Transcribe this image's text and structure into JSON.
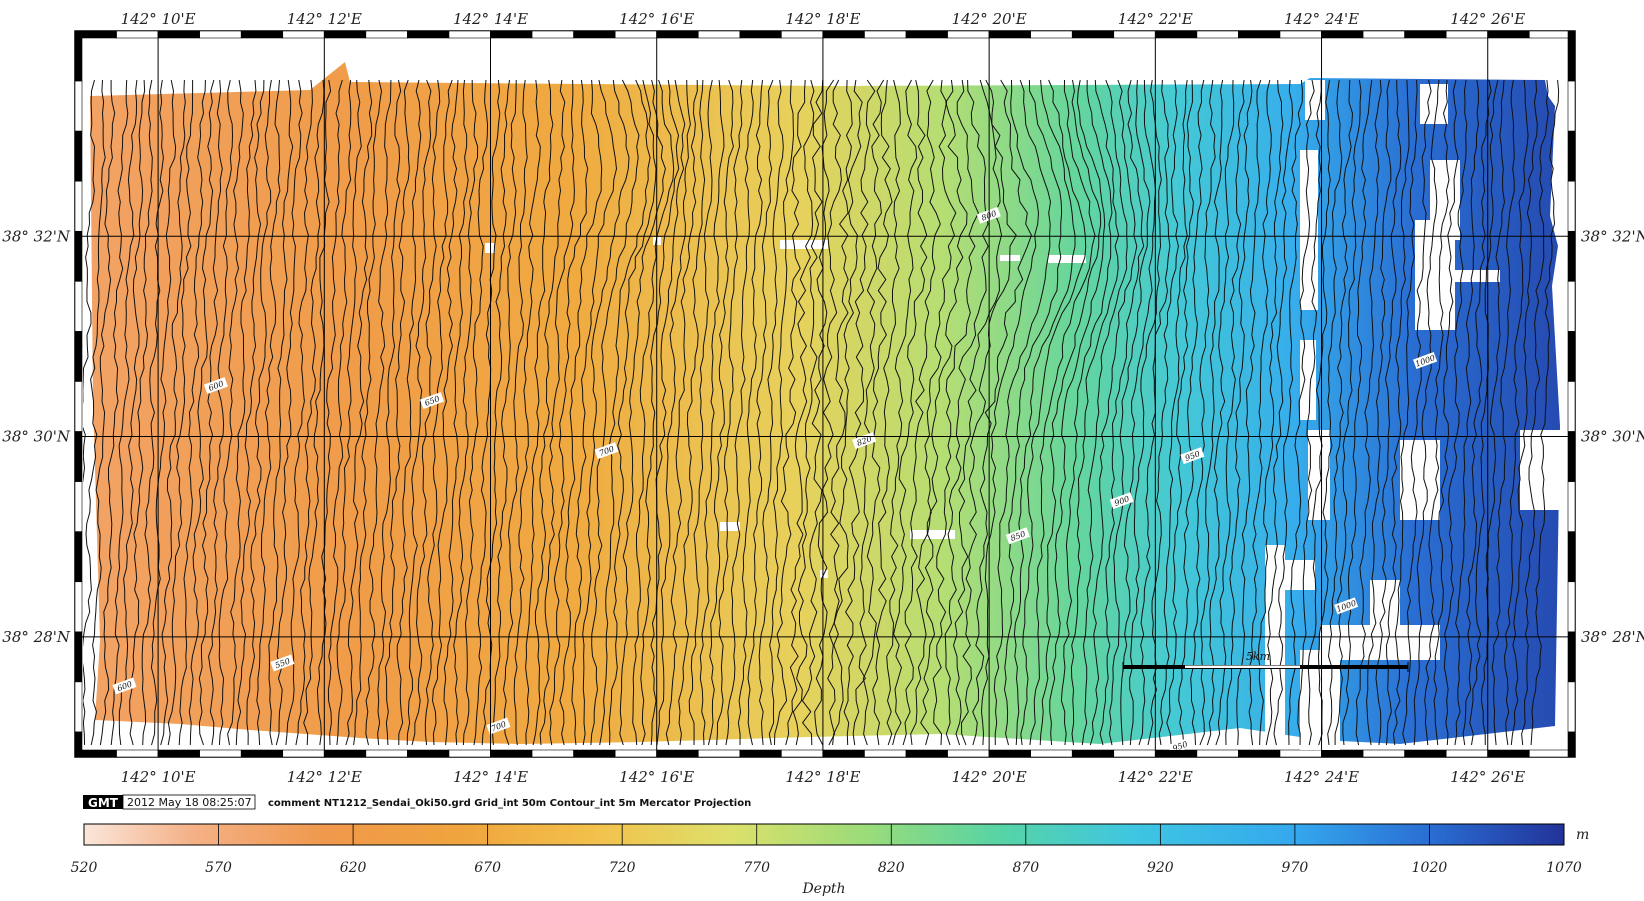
{
  "map": {
    "lon_labels": [
      "142° 10'E",
      "142° 12'E",
      "142° 14'E",
      "142° 16'E",
      "142° 18'E",
      "142° 20'E",
      "142° 22'E",
      "142° 24'E",
      "142° 26'E"
    ],
    "lat_labels": [
      "38° 32'N",
      "38° 30'N",
      "38° 28'N"
    ],
    "contour_labels": [
      {
        "text": "600",
        "lon_min": 10.7,
        "lat_min": 30.5
      },
      {
        "text": "650",
        "lon_min": 13.3,
        "lat_min": 30.35
      },
      {
        "text": "700",
        "lon_min": 15.4,
        "lat_min": 29.85
      },
      {
        "text": "800",
        "lon_min": 20.0,
        "lat_min": 32.2
      },
      {
        "text": "820",
        "lon_min": 18.5,
        "lat_min": 29.95
      },
      {
        "text": "850",
        "lon_min": 20.35,
        "lat_min": 29.0
      },
      {
        "text": "900",
        "lon_min": 21.6,
        "lat_min": 29.35
      },
      {
        "text": "950",
        "lon_min": 22.45,
        "lat_min": 29.8
      },
      {
        "text": "1000",
        "lon_min": 25.25,
        "lat_min": 30.75
      },
      {
        "text": "1000",
        "lon_min": 24.3,
        "lat_min": 28.3
      },
      {
        "text": "950",
        "lon_min": 22.3,
        "lat_min": 26.9
      },
      {
        "text": "600",
        "lon_min": 9.6,
        "lat_min": 27.5
      },
      {
        "text": "550",
        "lon_min": 11.5,
        "lat_min": 27.73
      },
      {
        "text": "700",
        "lon_min": 14.1,
        "lat_min": 27.1
      }
    ],
    "scale_bar_label": "5km"
  },
  "footer": {
    "gmt_logo": "GMT",
    "timestamp": "2012 May 18 08:25:07",
    "comment": "comment NT1212_Sendai_Oki50.grd Grid_int 50m Contour_int 5m  Mercator Projection"
  },
  "colorbar": {
    "ticks": [
      "520",
      "570",
      "620",
      "670",
      "720",
      "770",
      "820",
      "870",
      "920",
      "970",
      "1020",
      "1070"
    ],
    "unit": "m",
    "label": "Depth",
    "range": [
      520,
      1070
    ],
    "stops": [
      {
        "v": 520,
        "c": "#fbe6da"
      },
      {
        "v": 560,
        "c": "#f4b187"
      },
      {
        "v": 610,
        "c": "#f0984c"
      },
      {
        "v": 660,
        "c": "#f0a43d"
      },
      {
        "v": 710,
        "c": "#f2c14b"
      },
      {
        "v": 760,
        "c": "#dde06b"
      },
      {
        "v": 810,
        "c": "#9bdc79"
      },
      {
        "v": 860,
        "c": "#57d4a5"
      },
      {
        "v": 910,
        "c": "#3fc6e2"
      },
      {
        "v": 970,
        "c": "#34a8ee"
      },
      {
        "v": 1020,
        "c": "#2a6ed3"
      },
      {
        "v": 1070,
        "c": "#22339a"
      }
    ]
  }
}
